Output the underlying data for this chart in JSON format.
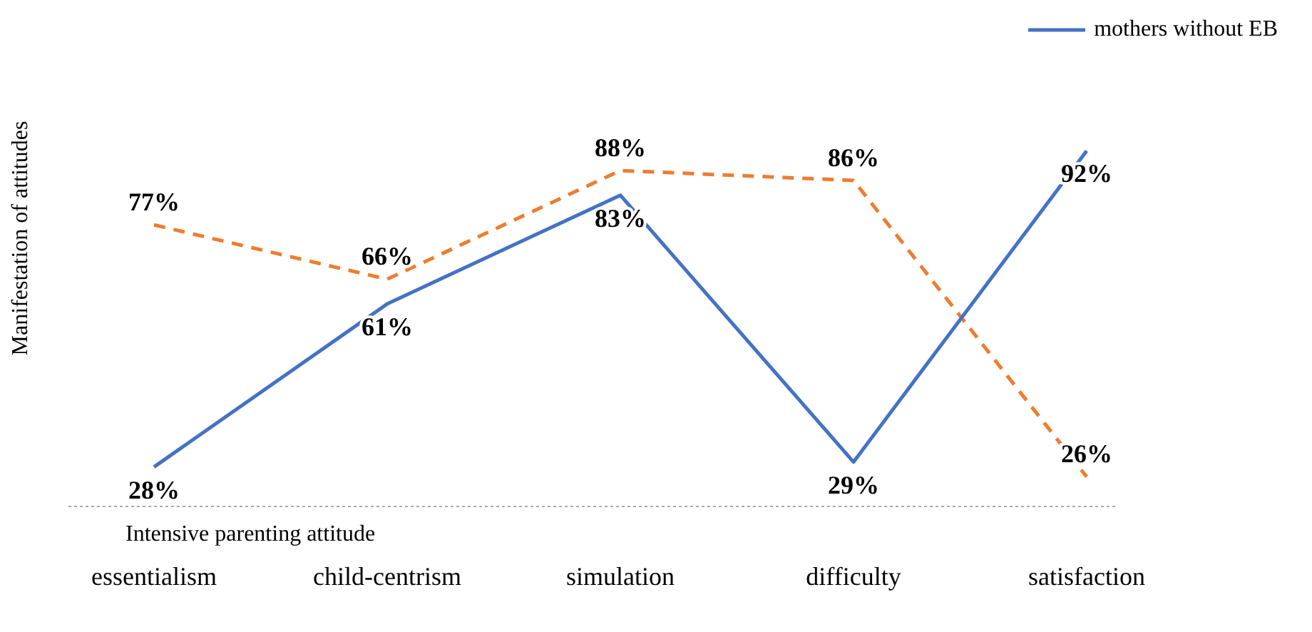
{
  "chart_data": {
    "type": "line",
    "xlabel": "Intensive parenting attitude",
    "ylabel": "Manifestation of attitudes",
    "categories": [
      "essentialism",
      "child-centrism",
      "simulation",
      "difficulty",
      "satisfaction"
    ],
    "series": [
      {
        "color": "#ed7d31",
        "line_style": "dashed",
        "values": [
          77,
          66,
          88,
          86,
          26
        ],
        "value_labels": [
          "77%",
          "66%",
          "88%",
          "86%",
          "26%"
        ]
      },
      {
        "name": "mothers without EB",
        "color": "#4472c4",
        "line_style": "solid",
        "values": [
          28,
          61,
          83,
          29,
          92
        ],
        "value_labels": [
          "28%",
          "61%",
          "83%",
          "29%",
          "92%"
        ]
      }
    ],
    "legend": "top right",
    "marker": "none"
  }
}
